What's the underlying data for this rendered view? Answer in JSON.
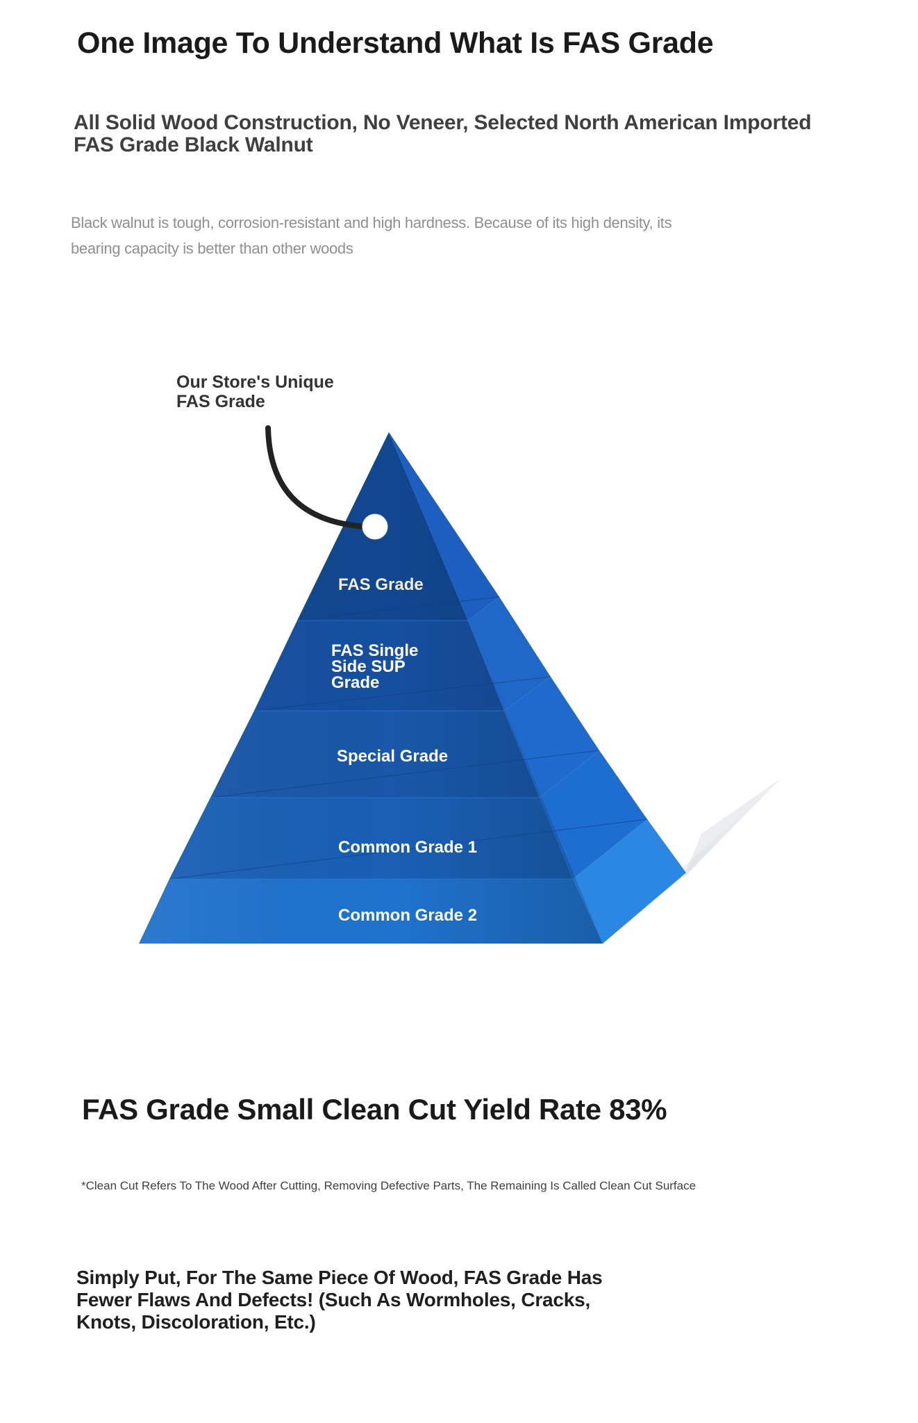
{
  "header": {
    "title": "One Image To Understand What Is FAS Grade",
    "subtitle": "All Solid Wood Construction, No Veneer, Selected North American Imported FAS Grade Black Walnut",
    "description": "Black walnut is tough, corrosion-resistant and high hardness. Because of its high density, its bearing capacity is better than other woods"
  },
  "pyramid": {
    "callout": "Our Store's Unique FAS Grade",
    "tiers": [
      "FAS Grade",
      "FAS Single Side SUP Grade",
      "Special Grade",
      "Common Grade 1",
      "Common Grade 2"
    ],
    "colors": {
      "front_top": "#0f4a9a",
      "front_bottom": "#1f7ad6",
      "side": "#2a86e0",
      "callout_line": "#222222"
    }
  },
  "yield": {
    "heading": "FAS Grade Small Clean Cut Yield Rate 83%",
    "note": "*Clean Cut Refers To The Wood After Cutting, Removing Defective Parts, The Remaining Is Called Clean Cut Surface"
  },
  "summary": {
    "text": "Simply Put, For The Same Piece Of Wood, FAS Grade Has Fewer Flaws And Defects! (Such As Wormholes, Cracks, Knots, Discoloration, Etc.)"
  }
}
